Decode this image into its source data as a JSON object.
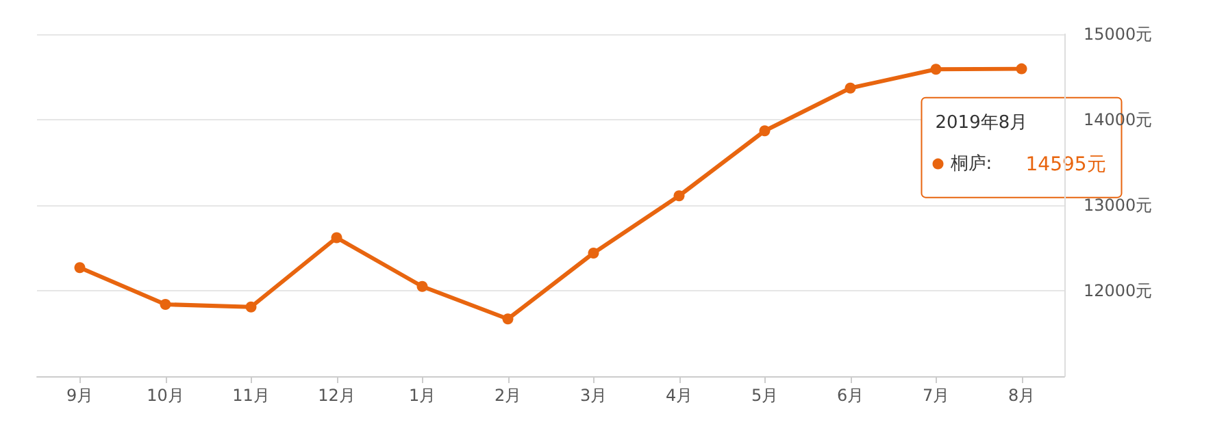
{
  "chart_data": {
    "type": "line",
    "categories": [
      "9月",
      "10月",
      "11月",
      "12月",
      "1月",
      "2月",
      "3月",
      "4月",
      "5月",
      "6月",
      "7月",
      "8月"
    ],
    "series": [
      {
        "name": "桐庐:",
        "color": "#e8650f",
        "values": [
          12270,
          11840,
          11810,
          12620,
          12050,
          11670,
          12440,
          13110,
          13870,
          14370,
          14590,
          14595
        ]
      }
    ],
    "ylim": [
      11000,
      15000
    ],
    "yticks": [
      {
        "value": 11000,
        "label": null
      },
      {
        "value": 12000,
        "label": "12000元"
      },
      {
        "value": 13000,
        "label": "13000元"
      },
      {
        "value": 14000,
        "label": "14000元"
      },
      {
        "value": 15000,
        "label": "15000元"
      }
    ],
    "grid": "y",
    "marker": "circle",
    "line_style": "solid",
    "legend": "top right",
    "annotations": [
      "2019年8月",
      "14595元"
    ]
  }
}
